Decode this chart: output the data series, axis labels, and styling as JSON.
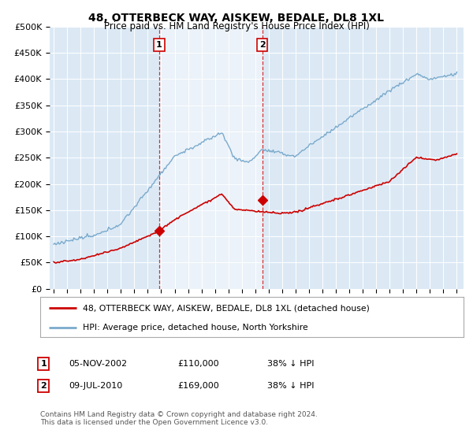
{
  "title": "48, OTTERBECK WAY, AISKEW, BEDALE, DL8 1XL",
  "subtitle": "Price paid vs. HM Land Registry's House Price Index (HPI)",
  "ylim": [
    0,
    500000
  ],
  "yticks": [
    0,
    50000,
    100000,
    150000,
    200000,
    250000,
    300000,
    350000,
    400000,
    450000,
    500000
  ],
  "ytick_labels": [
    "£0",
    "£50K",
    "£100K",
    "£150K",
    "£200K",
    "£250K",
    "£300K",
    "£350K",
    "£400K",
    "£450K",
    "£500K"
  ],
  "background_color": "#dce9f5",
  "plot_bg_color": "#dce9f5",
  "fill_color": "#ccddf0",
  "legend_line1": "48, OTTERBECK WAY, AISKEW, BEDALE, DL8 1XL (detached house)",
  "legend_line2": "HPI: Average price, detached house, North Yorkshire",
  "transaction1_label": "1",
  "transaction1_date": "05-NOV-2002",
  "transaction1_price": "£110,000",
  "transaction1_hpi": "38% ↓ HPI",
  "transaction1_year": 2002.85,
  "transaction1_value": 110000,
  "transaction2_label": "2",
  "transaction2_date": "09-JUL-2010",
  "transaction2_price": "£169,000",
  "transaction2_hpi": "38% ↓ HPI",
  "transaction2_year": 2010.52,
  "transaction2_value": 169000,
  "footer": "Contains HM Land Registry data © Crown copyright and database right 2024.\nThis data is licensed under the Open Government Licence v3.0.",
  "red_color": "#cc0000",
  "blue_color": "#7aaacc",
  "xlim_start": 1994.7,
  "xlim_end": 2025.5
}
